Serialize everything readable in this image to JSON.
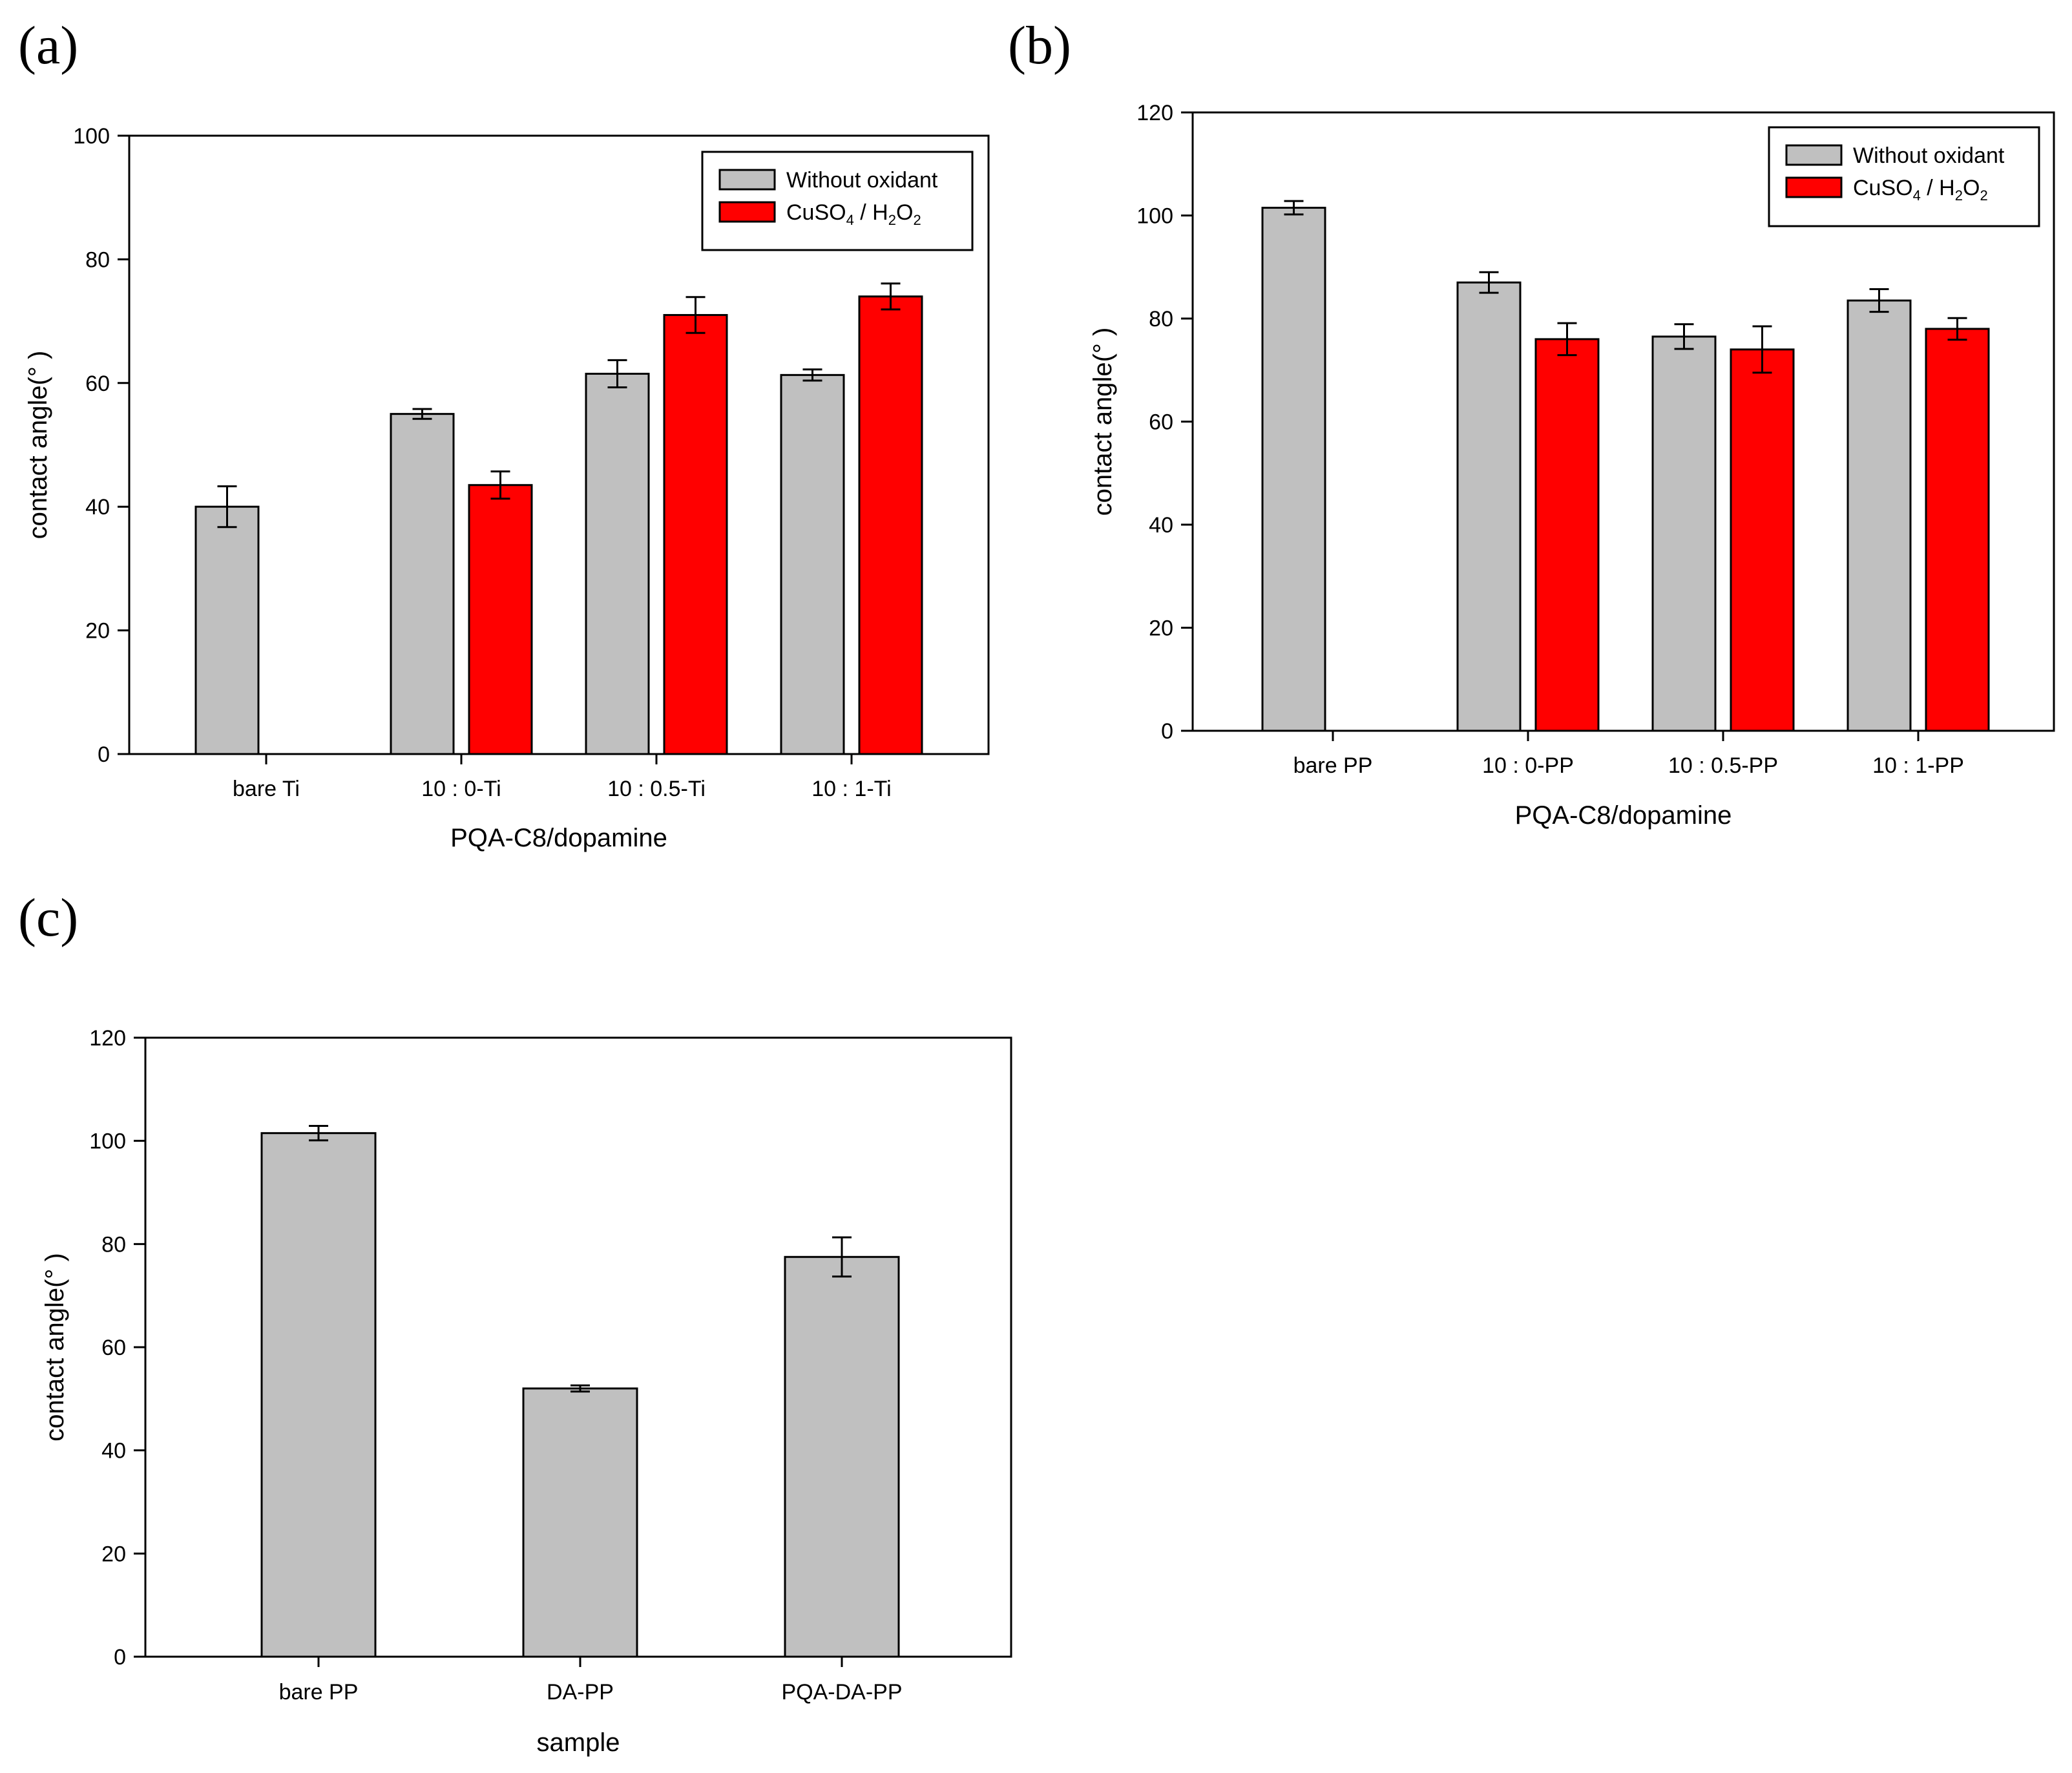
{
  "colors": {
    "series1": "#c0c0c0",
    "series2": "#ff0000",
    "axis": "#000000"
  },
  "chart_data": [
    {
      "panel_label": "(a)",
      "type": "bar",
      "xlabel": "PQA-C8/dopamine",
      "ylabel": "contact angle(°   )",
      "ylim": [
        0,
        100
      ],
      "yticks": [
        0,
        20,
        40,
        60,
        80,
        100
      ],
      "categories": [
        "bare Ti",
        "10 : 0-Ti",
        "10 : 0.5-Ti",
        "10 : 1-Ti"
      ],
      "legend_position": "top-right",
      "series": [
        {
          "name": "Without oxidant",
          "color": "#c0c0c0",
          "values": [
            40,
            55,
            61.5,
            61.3
          ],
          "errors": [
            3.3,
            0.8,
            2.2,
            0.9
          ]
        },
        {
          "name": "CuSO4 / H2O2",
          "color": "#ff0000",
          "values": [
            null,
            43.5,
            71,
            74
          ],
          "errors": [
            null,
            2.2,
            2.9,
            2.1
          ]
        }
      ]
    },
    {
      "panel_label": "(b)",
      "type": "bar",
      "xlabel": "PQA-C8/dopamine",
      "ylabel": "contact angle(°   )",
      "ylim": [
        0,
        120
      ],
      "yticks": [
        0,
        20,
        40,
        60,
        80,
        100,
        120
      ],
      "categories": [
        "bare PP",
        "10 : 0-PP",
        "10 : 0.5-PP",
        "10 : 1-PP"
      ],
      "legend_position": "top-right",
      "series": [
        {
          "name": "Without oxidant",
          "color": "#c0c0c0",
          "values": [
            101.5,
            87,
            76.5,
            83.5
          ],
          "errors": [
            1.3,
            2.0,
            2.4,
            2.2
          ]
        },
        {
          "name": "CuSO4 / H2O2",
          "color": "#ff0000",
          "values": [
            null,
            76,
            74,
            78
          ],
          "errors": [
            null,
            3.1,
            4.5,
            2.1
          ]
        }
      ]
    },
    {
      "panel_label": "(c)",
      "type": "bar",
      "xlabel": "sample",
      "ylabel": "contact angle(°   )",
      "ylim": [
        0,
        120
      ],
      "yticks": [
        0,
        20,
        40,
        60,
        80,
        100,
        120
      ],
      "categories": [
        "bare PP",
        "DA-PP",
        "PQA-DA-PP"
      ],
      "series": [
        {
          "name": "contact angle",
          "color": "#c0c0c0",
          "values": [
            101.5,
            52,
            77.5
          ],
          "errors": [
            1.4,
            0.6,
            3.8
          ]
        }
      ]
    }
  ]
}
